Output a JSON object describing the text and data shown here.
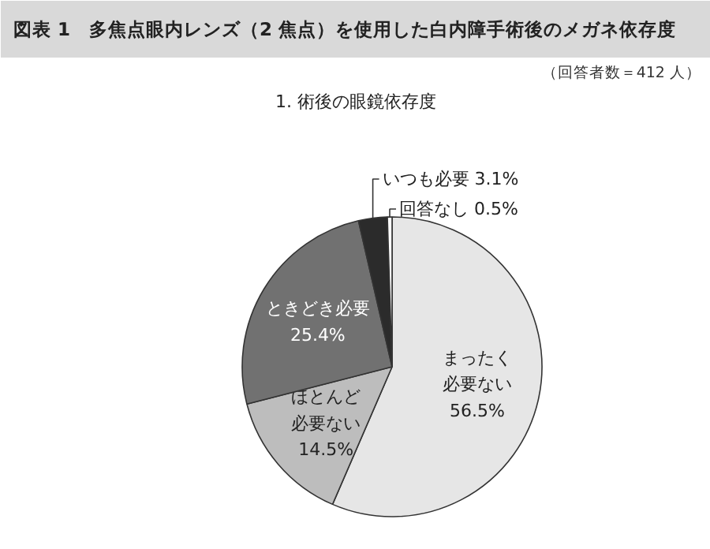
{
  "chart_data": {
    "type": "pie",
    "title": "図表 1　多焦点眼内レンズ（2 焦点）を使用した白内障手術後のメガネ依存度",
    "subtitle": "（回答者数＝412 人）",
    "annotations": [
      "1. 術後の眼鏡依存度"
    ],
    "categories": [
      "まったく必要ない",
      "ほとんど必要ない",
      "ときどき必要",
      "いつも必要",
      "回答なし"
    ],
    "values": [
      56.5,
      14.5,
      25.4,
      3.1,
      0.5
    ],
    "value_labels": [
      "56.5%",
      "14.5%",
      "25.4%",
      "3.1%",
      "0.5%"
    ],
    "colors": [
      "#e6e6e6",
      "#bdbdbd",
      "#717171",
      "#2b2b2b",
      "#ffffff"
    ]
  }
}
